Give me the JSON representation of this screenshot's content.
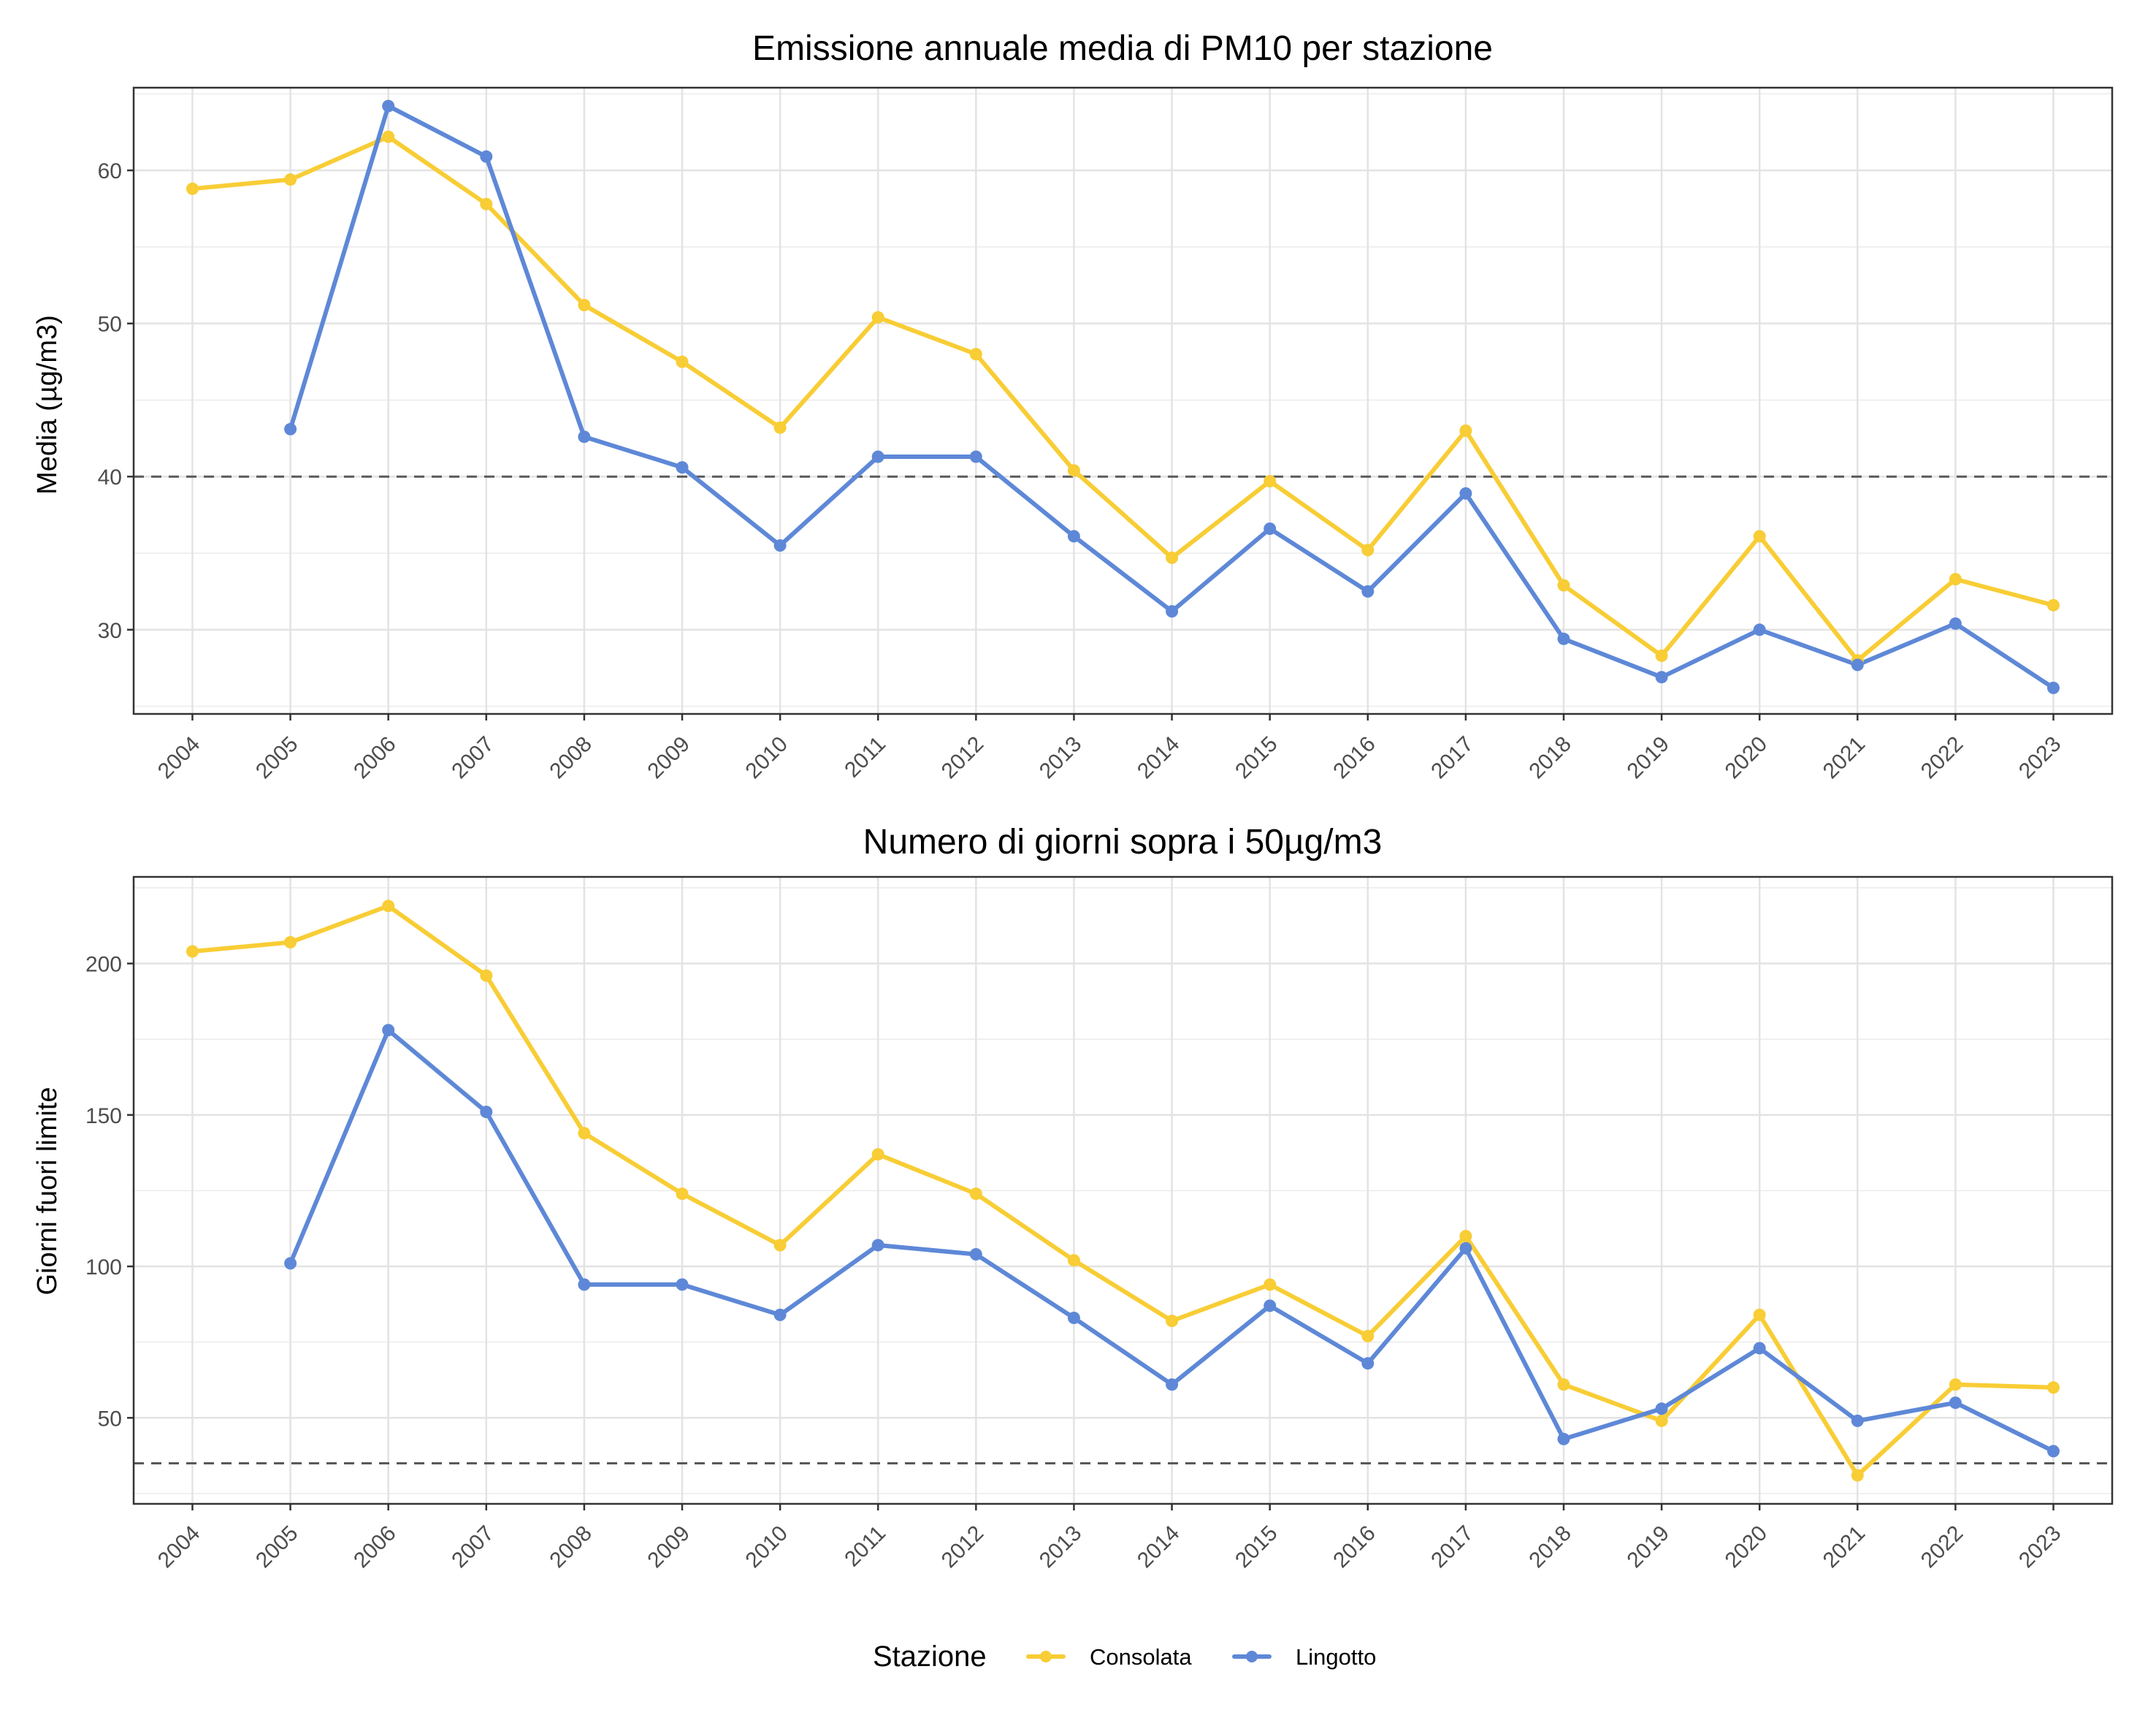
{
  "chart_data": [
    {
      "type": "line",
      "title": "Emissione annuale media di PM10 per stazione",
      "xlabel": "",
      "ylabel": "Media (µg/m3)",
      "categories": [
        "2004",
        "2005",
        "2006",
        "2007",
        "2008",
        "2009",
        "2010",
        "2011",
        "2012",
        "2013",
        "2014",
        "2015",
        "2016",
        "2017",
        "2018",
        "2019",
        "2020",
        "2021",
        "2022",
        "2023"
      ],
      "ylim": [
        24.5,
        65.4
      ],
      "yticks": [
        30,
        40,
        50,
        60
      ],
      "reference_line": 40,
      "grid": true,
      "series": [
        {
          "name": "Consolata",
          "color": "#F8CD35",
          "values": [
            58.8,
            59.4,
            62.2,
            57.8,
            51.2,
            47.5,
            43.2,
            50.4,
            48.0,
            40.4,
            34.7,
            39.7,
            35.2,
            43.0,
            32.9,
            28.3,
            36.1,
            28.0,
            33.3,
            31.6
          ]
        },
        {
          "name": "Lingotto",
          "color": "#5E88D7",
          "values": [
            null,
            43.1,
            64.2,
            60.9,
            42.6,
            40.6,
            35.5,
            41.3,
            41.3,
            36.1,
            31.2,
            36.6,
            32.5,
            38.9,
            29.4,
            26.9,
            30.0,
            27.7,
            30.4,
            26.2
          ]
        }
      ]
    },
    {
      "type": "line",
      "title": "Numero di giorni sopra i 50µg/m3",
      "xlabel": "",
      "ylabel": "Giorni fuori limite",
      "categories": [
        "2004",
        "2005",
        "2006",
        "2007",
        "2008",
        "2009",
        "2010",
        "2011",
        "2012",
        "2013",
        "2014",
        "2015",
        "2016",
        "2017",
        "2018",
        "2019",
        "2020",
        "2021",
        "2022",
        "2023"
      ],
      "ylim": [
        21.6,
        228.6
      ],
      "yticks": [
        50,
        100,
        150,
        200
      ],
      "reference_line": 35,
      "grid": true,
      "series": [
        {
          "name": "Consolata",
          "color": "#F8CD35",
          "values": [
            204,
            207,
            219,
            196,
            144,
            124,
            107,
            137,
            124,
            102,
            82,
            94,
            77,
            110,
            61,
            49,
            84,
            31,
            61,
            60
          ]
        },
        {
          "name": "Lingotto",
          "color": "#5E88D7",
          "values": [
            null,
            101,
            178,
            151,
            94,
            94,
            84,
            107,
            104,
            83,
            61,
            87,
            68,
            106,
            43,
            53,
            73,
            49,
            55,
            39
          ]
        }
      ]
    }
  ],
  "legend": {
    "title": "Stazione",
    "position": "bottom",
    "items": [
      {
        "label": "Consolata",
        "color": "#F8CD35"
      },
      {
        "label": "Lingotto",
        "color": "#5E88D7"
      }
    ]
  }
}
